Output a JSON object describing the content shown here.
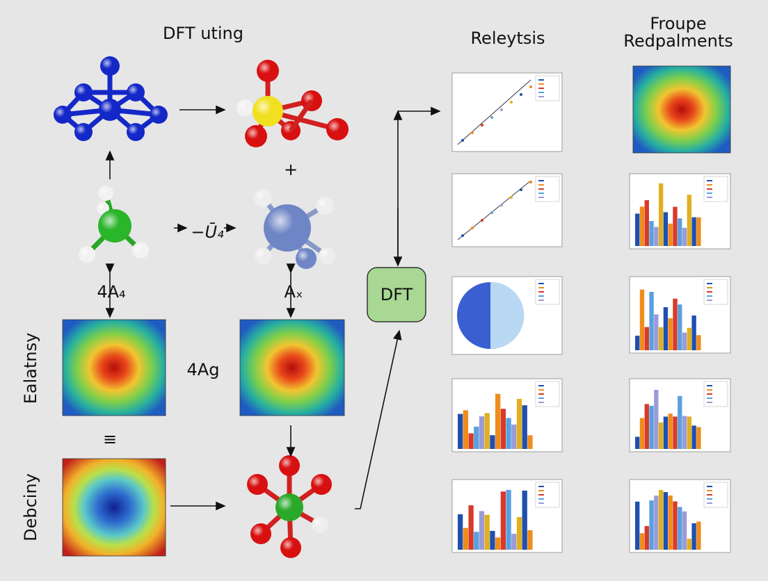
{
  "header": {
    "left_title": "DFT uting",
    "middle_title": "Releytsis",
    "right_title": [
      "Froupe",
      "Redpalments"
    ]
  },
  "labels": {
    "plus": "+",
    "reaction": "−Ū₄",
    "left_arrow_label": "4A₄",
    "right_arrow_label": "Aₓ",
    "middle_label": "4Ag",
    "equiv": "≡",
    "side_top": "Ealatnsy",
    "side_bottom": "Debciny"
  },
  "center_node": {
    "label": "DFT"
  }
}
